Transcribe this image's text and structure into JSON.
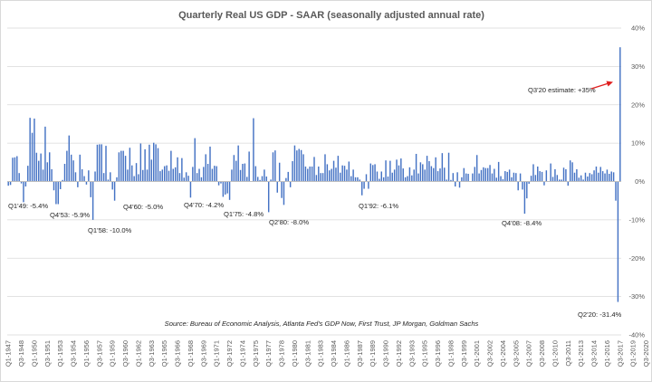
{
  "chart_data": {
    "type": "bar",
    "title": "Quarterly Real US GDP - SAAR (seasonally adjusted annual rate)",
    "xlabel": "",
    "ylabel": "",
    "ylim": [
      -40,
      40
    ],
    "y_ticks": [
      "-40%",
      "-30%",
      "-20%",
      "-10%",
      "0%",
      "10%",
      "20%",
      "30%",
      "40%"
    ],
    "y_tick_values": [
      -40,
      -30,
      -20,
      -10,
      0,
      10,
      20,
      30,
      40
    ],
    "x_first_quarter": "Q1-1947",
    "x_tick_labels": [
      "Q1-1947",
      "Q3-1948",
      "Q1-1950",
      "Q3-1951",
      "Q1-1953",
      "Q3-1954",
      "Q1-1956",
      "Q3-1957",
      "Q1-1959",
      "Q3-1960",
      "Q1-1962",
      "Q3-1963",
      "Q1-1965",
      "Q3-1966",
      "Q1-1968",
      "Q3-1969",
      "Q1-1971",
      "Q3-1972",
      "Q1-1974",
      "Q3-1975",
      "Q1-1977",
      "Q3-1978",
      "Q1-1980",
      "Q3-1981",
      "Q1-1983",
      "Q3-1984",
      "Q1-1986",
      "Q3-1987",
      "Q1-1989",
      "Q3-1990",
      "Q1-1992",
      "Q3-1993",
      "Q1-1995",
      "Q3-1996",
      "Q1-1998",
      "Q3-1999",
      "Q1-2001",
      "Q3-2002",
      "Q1-2004",
      "Q3-2005",
      "Q1-2007",
      "Q3-2008",
      "Q1-2010",
      "Q3-2011",
      "Q1-2013",
      "Q3-2014",
      "Q1-2016",
      "Q3-2017",
      "Q1-2019",
      "Q3-2020"
    ],
    "bar_color": "#4472c4",
    "grid": true,
    "legend": "none",
    "values": [
      -1.1,
      -0.9,
      6.2,
      6.3,
      6.6,
      2.2,
      -0.5,
      -5.4,
      -1.3,
      4.1,
      16.6,
      12.7,
      16.4,
      7.5,
      5.4,
      7.3,
      3.1,
      14.3,
      5.0,
      7.6,
      3.2,
      -2.3,
      -5.9,
      -5.9,
      -2.0,
      0.4,
      4.6,
      8.0,
      12.0,
      7.0,
      5.5,
      2.4,
      -1.5,
      7.0,
      3.2,
      1.4,
      -0.8,
      2.9,
      -4.1,
      -10.0,
      2.6,
      9.6,
      9.7,
      9.7,
      2.2,
      9.3,
      0.5,
      2.4,
      -2.1,
      -5.0,
      1.1,
      7.6,
      8.0,
      8.0,
      6.7,
      3.1,
      8.8,
      4.2,
      1.4,
      4.8,
      1.9,
      9.9,
      3.0,
      8.4,
      3.1,
      9.6,
      5.7,
      10.1,
      9.7,
      8.7,
      2.7,
      3.1,
      4.0,
      4.2,
      2.8,
      8.0,
      3.3,
      3.7,
      6.3,
      2.2,
      6.1,
      1.0,
      2.4,
      1.5,
      -4.2,
      3.8,
      11.3,
      2.2,
      3.3,
      1.1,
      3.8,
      7.1,
      4.6,
      9.1,
      3.3,
      4.1,
      4.0,
      -1.0,
      -0.5,
      -4.0,
      -3.4,
      -3.1,
      -4.8,
      3.1,
      6.9,
      5.4,
      9.4,
      3.0,
      4.6,
      4.7,
      1.2,
      7.8,
      0.0,
      16.5,
      4.0,
      1.2,
      0.4,
      1.4,
      3.1,
      1.3,
      -8.0,
      0.5,
      7.6,
      8.1,
      -2.9,
      4.9,
      -4.3,
      -6.1,
      0.9,
      2.5,
      -1.5,
      5.3,
      9.4,
      8.1,
      8.5,
      8.2,
      7.1,
      3.9,
      3.3,
      3.9,
      3.9,
      6.4,
      1.7,
      3.9,
      2.2,
      2.2,
      7.1,
      4.5,
      2.9,
      3.3,
      5.4,
      3.6,
      6.7,
      2.3,
      4.2,
      4.1,
      3.1,
      5.2,
      1.4,
      3.1,
      1.1,
      1.1,
      0.5,
      -3.6,
      -1.9,
      1.9,
      -1.9,
      4.7,
      4.3,
      4.5,
      2.6,
      0.7,
      2.6,
      1.1,
      5.5,
      1.3,
      5.4,
      2.3,
      3.1,
      5.7,
      4.2,
      6.0,
      3.4,
      1.1,
      1.4,
      3.7,
      1.6,
      3.1,
      7.2,
      2.1,
      5.0,
      4.5,
      3.1,
      6.7,
      5.3,
      4.0,
      3.5,
      6.3,
      2.7,
      3.4,
      7.4,
      3.6,
      0.5,
      7.5,
      0.4,
      2.2,
      -1.3,
      2.4,
      -1.6,
      1.1,
      3.5,
      2.1,
      2.0,
      0.1,
      2.1,
      3.8,
      6.9,
      2.1,
      3.0,
      3.7,
      3.5,
      3.5,
      4.3,
      2.1,
      3.3,
      1.0,
      5.1,
      1.4,
      0.6,
      2.7,
      2.5,
      3.1,
      1.1,
      2.3,
      2.2,
      -2.3,
      2.1,
      -2.1,
      -8.4,
      -4.4,
      -0.6,
      1.5,
      4.5,
      1.7,
      3.9,
      2.7,
      2.5,
      -1.0,
      2.9,
      -0.1,
      4.7,
      1.2,
      3.2,
      1.7,
      0.5,
      0.5,
      3.6,
      3.2,
      -1.1,
      5.5,
      5.0,
      2.3,
      3.2,
      1.0,
      1.6,
      0.5,
      2.3,
      1.3,
      2.2,
      1.9,
      2.9,
      3.9,
      2.3,
      3.8,
      2.7,
      2.1,
      3.1,
      2.0,
      2.6,
      2.4,
      -5.0,
      -31.4,
      35.0
    ],
    "annotations": [
      {
        "text": "Q1'49: -5.4%",
        "value": -5.4
      },
      {
        "text": "Q4'53: -5.9%",
        "value": -5.9
      },
      {
        "text": "Q1'58: -10.0%",
        "value": -10.0
      },
      {
        "text": "Q4'60: -5.0%",
        "value": -5.0
      },
      {
        "text": "Q4'70: -4.2%",
        "value": -4.2
      },
      {
        "text": "Q1'75: -4.8%",
        "value": -4.8
      },
      {
        "text": "Q2'80: -8.0%",
        "value": -8.0
      },
      {
        "text": "Q1'92: -6.1%",
        "value": -6.1
      },
      {
        "text": "Q4'08: -8.4%",
        "value": -8.4
      },
      {
        "text": "Q2'20: -31.4%",
        "value": -31.4
      },
      {
        "text": "Q3'20 estimate: +35%",
        "value": 35.0
      }
    ],
    "arrow_color": "#e02020",
    "source": "Source: Bureau of Economic Analysis, Atlanta Fed's GDP Now, First Trust, JP Morgan, Goldman Sachs"
  }
}
